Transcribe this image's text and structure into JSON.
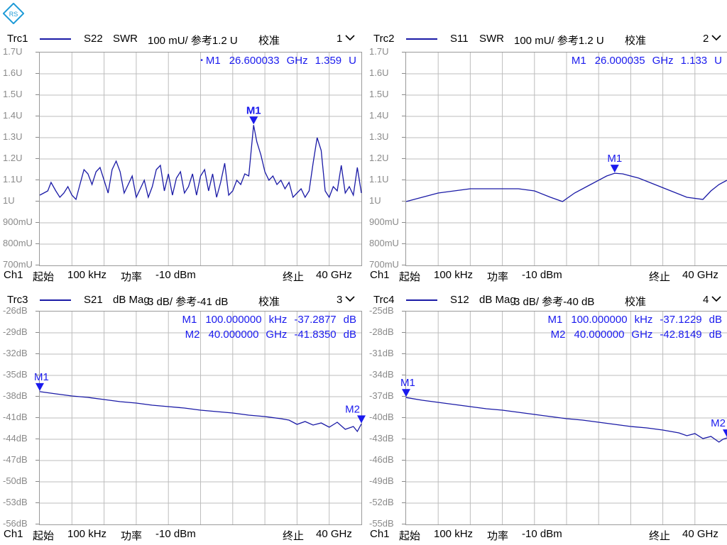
{
  "logo": {
    "text": "RS",
    "color": "#1e9bd7"
  },
  "colors": {
    "trace": "#1a1aa6",
    "marker": "#1a1aee",
    "grid": "#bdbdbd",
    "tick": "#8a8a8a"
  },
  "panes": [
    {
      "header": {
        "trace": "Trc1",
        "param": "S22",
        "format": "SWR",
        "scale": "100 mU/ 参考1.2 U",
        "cal": "校准",
        "num": "1"
      },
      "markers_readout": [
        {
          "dot": true,
          "name": "M1",
          "x": "26.600033",
          "xunit": "GHz",
          "y": "1.359",
          "yunit": "U"
        }
      ],
      "footer": {
        "ch": "Ch1",
        "start_label": "起始",
        "start_val": "100 kHz",
        "power_label": "功率",
        "power_val": "-10 dBm",
        "stop_label": "终止",
        "stop_val": "40 GHz"
      },
      "chart_data": {
        "type": "line",
        "x": [
          0.0001,
          0.5,
          1.0,
          1.4,
          2.0,
          2.5,
          3.0,
          3.5,
          4.0,
          4.5,
          5.0,
          5.5,
          6.0,
          6.5,
          7.0,
          7.5,
          8.0,
          8.5,
          9.0,
          9.5,
          10.0,
          10.5,
          11.0,
          11.5,
          12.0,
          12.5,
          13.0,
          13.5,
          14.0,
          14.5,
          15.0,
          15.5,
          16.0,
          16.5,
          17.0,
          17.5,
          18.0,
          18.5,
          19.0,
          19.5,
          20.0,
          20.5,
          21.0,
          21.5,
          22.0,
          22.5,
          23.0,
          23.5,
          24.0,
          24.5,
          25.0,
          25.5,
          26.0,
          26.6,
          27.0,
          27.5,
          28.0,
          28.5,
          29.0,
          29.5,
          30.0,
          30.5,
          31.0,
          31.5,
          32.0,
          32.5,
          33.0,
          33.5,
          34.0,
          34.5,
          35.0,
          35.5,
          36.0,
          36.5,
          37.0,
          37.5,
          38.0,
          38.5,
          39.0,
          39.5,
          40.0
        ],
        "y": [
          1.03,
          1.04,
          1.05,
          1.09,
          1.05,
          1.02,
          1.04,
          1.07,
          1.03,
          1.01,
          1.08,
          1.15,
          1.13,
          1.08,
          1.14,
          1.16,
          1.1,
          1.04,
          1.15,
          1.19,
          1.14,
          1.04,
          1.08,
          1.12,
          1.02,
          1.06,
          1.1,
          1.02,
          1.07,
          1.15,
          1.17,
          1.05,
          1.13,
          1.03,
          1.11,
          1.14,
          1.04,
          1.07,
          1.13,
          1.03,
          1.12,
          1.15,
          1.05,
          1.13,
          1.02,
          1.09,
          1.18,
          1.03,
          1.05,
          1.1,
          1.08,
          1.13,
          1.12,
          1.359,
          1.28,
          1.22,
          1.14,
          1.1,
          1.12,
          1.08,
          1.1,
          1.06,
          1.09,
          1.02,
          1.04,
          1.06,
          1.02,
          1.05,
          1.18,
          1.3,
          1.24,
          1.05,
          1.02,
          1.07,
          1.05,
          1.17,
          1.04,
          1.07,
          1.03,
          1.16,
          1.04
        ],
        "xlim": [
          0.0001,
          40
        ],
        "ylim": [
          0.7,
          1.7
        ],
        "yticks": [
          "1.7U",
          "1.6U",
          "1.5U",
          "1.4U",
          "1.3U",
          "1.2U",
          "1.1U",
          "1U",
          "900mU",
          "800mU",
          "700mU"
        ],
        "grid": true,
        "markers": [
          {
            "label": "M1",
            "x": 26.6,
            "y": 1.359
          }
        ]
      }
    },
    {
      "header": {
        "trace": "Trc2",
        "param": "S11",
        "format": "SWR",
        "scale": "100 mU/ 参考1.2 U",
        "cal": "校准",
        "num": "2"
      },
      "markers_readout": [
        {
          "dot": false,
          "name": "M1",
          "x": "26.000035",
          "xunit": "GHz",
          "y": "1.133",
          "yunit": "U"
        }
      ],
      "footer": {
        "ch": "Ch1",
        "start_label": "起始",
        "start_val": "100 kHz",
        "power_label": "功率",
        "power_val": "-10 dBm",
        "stop_label": "终止",
        "stop_val": "40 GHz"
      },
      "chart_data": {
        "type": "line",
        "x": [
          0.0001,
          2,
          4,
          6,
          8,
          10,
          12,
          14,
          16,
          18,
          19.5,
          21,
          23,
          25,
          26,
          27,
          29,
          31,
          33,
          35,
          37,
          38,
          39,
          40
        ],
        "y": [
          1.0,
          1.02,
          1.04,
          1.05,
          1.06,
          1.06,
          1.06,
          1.06,
          1.05,
          1.02,
          1.0,
          1.04,
          1.08,
          1.12,
          1.133,
          1.13,
          1.11,
          1.08,
          1.05,
          1.02,
          1.01,
          1.05,
          1.08,
          1.1
        ],
        "xlim": [
          0.0001,
          40
        ],
        "ylim": [
          0.7,
          1.7
        ],
        "yticks": [
          "1.7U",
          "1.6U",
          "1.5U",
          "1.4U",
          "1.3U",
          "1.2U",
          "1.1U",
          "1U",
          "900mU",
          "800mU",
          "700mU"
        ],
        "grid": true,
        "markers": [
          {
            "label": "M1",
            "x": 26.0,
            "y": 1.133
          }
        ]
      }
    },
    {
      "header": {
        "trace": "Trc3",
        "param": "S21",
        "format": "dB Mag",
        "scale": "3 dB/ 参考-41 dB",
        "cal": "校准",
        "num": "3"
      },
      "markers_readout": [
        {
          "dot": false,
          "name": "M1",
          "x": "100.000000",
          "xunit": "kHz",
          "y": "-37.2877",
          "yunit": "dB"
        },
        {
          "dot": false,
          "name": "M2",
          "x": "40.000000",
          "xunit": "GHz",
          "y": "-41.8350",
          "yunit": "dB"
        }
      ],
      "footer": {
        "ch": "Ch1",
        "start_label": "起始",
        "start_val": "100 kHz",
        "power_label": "功率",
        "power_val": "-10 dBm",
        "stop_label": "终止",
        "stop_val": "40 GHz"
      },
      "chart_data": {
        "type": "line",
        "x": [
          0.0001,
          2,
          4,
          6,
          8,
          10,
          12,
          14,
          16,
          18,
          20,
          22,
          24,
          26,
          28,
          30,
          31,
          32,
          33,
          34,
          35,
          36,
          37,
          38,
          39,
          39.5,
          40
        ],
        "y": [
          -37.29,
          -37.6,
          -37.9,
          -38.1,
          -38.4,
          -38.7,
          -38.9,
          -39.2,
          -39.4,
          -39.6,
          -39.9,
          -40.1,
          -40.3,
          -40.6,
          -40.8,
          -41.1,
          -41.3,
          -41.9,
          -41.5,
          -42.0,
          -41.7,
          -42.3,
          -41.6,
          -42.6,
          -42.2,
          -42.9,
          -41.84
        ],
        "xlim": [
          0.0001,
          40
        ],
        "ylim": [
          -56,
          -26
        ],
        "yticks": [
          "-26dB",
          "-29dB",
          "-32dB",
          "-35dB",
          "-38dB",
          "-41dB",
          "-44dB",
          "-47dB",
          "-50dB",
          "-53dB",
          "-56dB"
        ],
        "grid": true,
        "markers": [
          {
            "label": "M1",
            "x": 0.0001,
            "y": -37.2877
          },
          {
            "label": "M2",
            "x": 40.0,
            "y": -41.835
          }
        ]
      }
    },
    {
      "header": {
        "trace": "Trc4",
        "param": "S12",
        "format": "dB Mag",
        "scale": "3 dB/ 参考-40 dB",
        "cal": "校准",
        "num": "4"
      },
      "markers_readout": [
        {
          "dot": false,
          "name": "M1",
          "x": "100.000000",
          "xunit": "kHz",
          "y": "-37.1229",
          "yunit": "dB"
        },
        {
          "dot": false,
          "name": "M2",
          "x": "40.000000",
          "xunit": "GHz",
          "y": "-42.8149",
          "yunit": "dB"
        }
      ],
      "footer": {
        "ch": "Ch1",
        "start_label": "起始",
        "start_val": "100 kHz",
        "power_label": "功率",
        "power_val": "-10 dBm",
        "stop_label": "终止",
        "stop_val": "40 GHz"
      },
      "chart_data": {
        "type": "line",
        "x": [
          0.0001,
          2,
          4,
          6,
          8,
          10,
          12,
          14,
          16,
          18,
          20,
          22,
          24,
          26,
          28,
          30,
          32,
          34,
          35,
          36,
          37,
          38,
          39,
          39.5,
          40
        ],
        "y": [
          -37.12,
          -37.5,
          -37.8,
          -38.1,
          -38.4,
          -38.7,
          -38.9,
          -39.2,
          -39.5,
          -39.8,
          -40.1,
          -40.3,
          -40.6,
          -40.9,
          -41.2,
          -41.4,
          -41.7,
          -42.1,
          -42.5,
          -42.2,
          -42.9,
          -42.6,
          -43.4,
          -43.0,
          -42.81
        ],
        "xlim": [
          0.0001,
          40
        ],
        "ylim": [
          -55,
          -25
        ],
        "yticks": [
          "-25dB",
          "-28dB",
          "-31dB",
          "-34dB",
          "-37dB",
          "-40dB",
          "-43dB",
          "-46dB",
          "-49dB",
          "-52dB",
          "-55dB"
        ],
        "grid": true,
        "markers": [
          {
            "label": "M1",
            "x": 0.0001,
            "y": -37.1229
          },
          {
            "label": "M2",
            "x": 40.0,
            "y": -42.8149
          }
        ]
      }
    }
  ]
}
